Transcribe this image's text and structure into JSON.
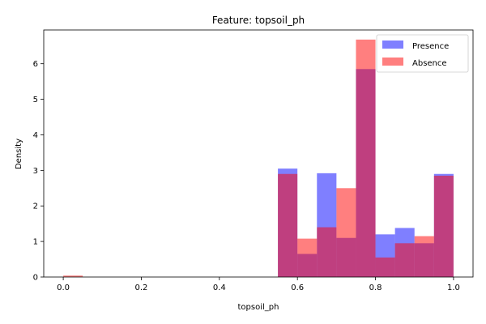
{
  "chart_data": {
    "type": "histogram",
    "title": "Feature: topsoil_ph",
    "xlabel": "topsoil_ph",
    "ylabel": "Density",
    "xlim": [
      -0.05,
      1.05
    ],
    "ylim": [
      0,
      6.95
    ],
    "xticks": [
      "0.0",
      "0.2",
      "0.4",
      "0.6",
      "0.8",
      "1.0"
    ],
    "yticks": [
      "0",
      "1",
      "2",
      "3",
      "4",
      "5",
      "6"
    ],
    "bin_edges": [
      0.0,
      0.05,
      0.1,
      0.15,
      0.2,
      0.25,
      0.3,
      0.35,
      0.4,
      0.45,
      0.5,
      0.55,
      0.6,
      0.65,
      0.7,
      0.75,
      0.8,
      0.85,
      0.9,
      0.95,
      1.0
    ],
    "legend_position": "top-right",
    "series": [
      {
        "name": "Presence",
        "color": "#0000ff",
        "values": [
          0,
          0,
          0,
          0,
          0,
          0,
          0,
          0,
          0,
          0,
          0,
          3.05,
          0.65,
          2.92,
          1.1,
          5.85,
          1.2,
          1.38,
          0.95,
          2.9
        ]
      },
      {
        "name": "Absence",
        "color": "#ff0000",
        "values": [
          0.04,
          0,
          0,
          0,
          0,
          0,
          0,
          0,
          0,
          0,
          0,
          2.9,
          1.08,
          1.4,
          2.5,
          6.68,
          0.55,
          0.95,
          1.15,
          2.85
        ]
      }
    ]
  }
}
